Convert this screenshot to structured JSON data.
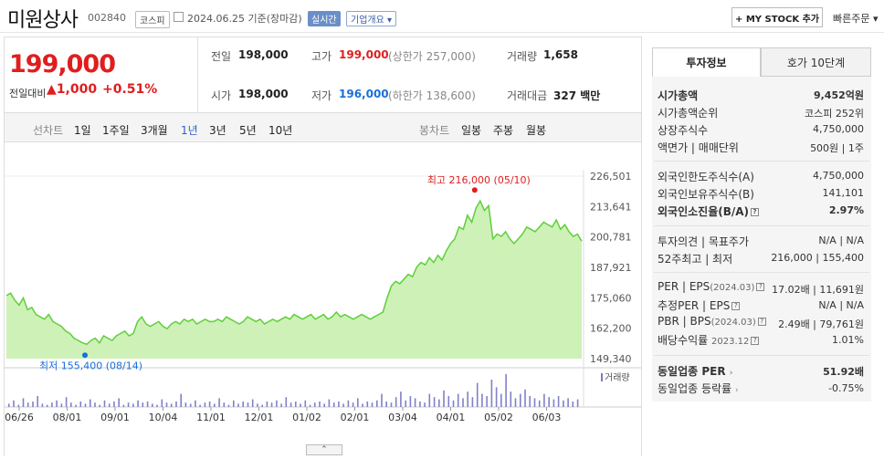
{
  "header": {
    "stock_name": "미원상사",
    "stock_code": "002840",
    "market": "코스피",
    "date": "2024.06.25",
    "basis": "기준(장마감)",
    "realtime_badge": "실시간",
    "overview_label": "기업개요",
    "mystock_label": "+ MY STOCK 추가",
    "quick_order": "빠른주문"
  },
  "quote": {
    "price": "199,000",
    "change_label": "전일대비",
    "change_amount": "1,000",
    "change_percent": "+0.51%",
    "prev_label": "전일",
    "prev": "198,000",
    "high_label": "고가",
    "high": "199,000",
    "upper_limit": "(상한가 257,000)",
    "volume_label": "거래량",
    "volume": "1,658",
    "open_label": "시가",
    "open": "198,000",
    "low_label": "저가",
    "low": "196,000",
    "lower_limit": "(하한가 138,600)",
    "amount_label": "거래대금",
    "amount": "327",
    "amount_unit": "백만"
  },
  "periods": {
    "line_label": "선차트",
    "items": [
      "1일",
      "1주일",
      "3개월",
      "1년",
      "3년",
      "5년",
      "10년"
    ],
    "active": "1년",
    "candle_label": "봉차트",
    "candle_items": [
      "일봉",
      "주봉",
      "월봉"
    ]
  },
  "chart_data": {
    "type": "area",
    "y_ticks": [
      "226,501",
      "213,641",
      "200,781",
      "187,921",
      "175,060",
      "162,200",
      "149,340"
    ],
    "ylim": [
      149340,
      226501
    ],
    "x_ticks": [
      "06/26",
      "08/01",
      "09/01",
      "10/04",
      "11/01",
      "12/01",
      "01/02",
      "02/01",
      "03/04",
      "04/01",
      "05/02",
      "06/03"
    ],
    "high_annotation": "최고 216,000 (05/10)",
    "low_annotation": "최저 155,400 (08/14)",
    "volume_label": "거래량",
    "values": [
      176000,
      177000,
      174000,
      172000,
      175000,
      170000,
      171000,
      168000,
      167000,
      166000,
      168000,
      165000,
      164000,
      163000,
      161000,
      160000,
      158000,
      157000,
      156000,
      155400,
      157000,
      158000,
      156000,
      159000,
      158000,
      157000,
      159000,
      160000,
      161000,
      159000,
      160000,
      165000,
      167000,
      164000,
      163000,
      164000,
      165000,
      163000,
      162000,
      164000,
      165000,
      164000,
      166000,
      165000,
      166000,
      164000,
      165000,
      166000,
      165000,
      165000,
      166000,
      165000,
      167000,
      166000,
      165000,
      164000,
      165000,
      167000,
      166000,
      165000,
      166000,
      164000,
      165000,
      166000,
      165000,
      166000,
      167000,
      166000,
      168000,
      167000,
      166000,
      167000,
      168000,
      166000,
      167000,
      168000,
      166000,
      167000,
      169000,
      167000,
      168000,
      167000,
      166000,
      167000,
      168000,
      167000,
      166000,
      167000,
      168000,
      169000,
      175000,
      180000,
      182000,
      181000,
      183000,
      185000,
      184000,
      188000,
      190000,
      189000,
      192000,
      190000,
      193000,
      191000,
      195000,
      198000,
      200000,
      205000,
      204000,
      210000,
      207000,
      213000,
      216000,
      212000,
      214000,
      200000,
      202000,
      201000,
      203000,
      200000,
      198000,
      200000,
      202000,
      205000,
      204000,
      203000,
      205000,
      207000,
      206000,
      205000,
      208000,
      204000,
      206000,
      203000,
      201000,
      202000,
      199000
    ]
  },
  "info": {
    "tab_investment": "투자정보",
    "tab_orderbook": "호가 10단계",
    "market_cap_label": "시가총액",
    "market_cap": "9,452억원",
    "cap_rank_label": "시가총액순위",
    "cap_rank": "코스피 252위",
    "shares_label": "상장주식수",
    "shares": "4,750,000",
    "face_label": "액면가 | 매매단위",
    "face": "500원 | 1주",
    "foreign_limit_label": "외국인한도주식수(A)",
    "foreign_limit": "4,750,000",
    "foreign_hold_label": "외국인보유주식수(B)",
    "foreign_hold": "141,101",
    "foreign_ratio_label": "외국인소진율(B/A)",
    "foreign_ratio": "2.97%",
    "opinion_label": "투자의견 | 목표주가",
    "opinion": "N/A | N/A",
    "week52_label": "52주최고 | 최저",
    "week52": "216,000 | 155,400",
    "per_label": "PER | EPS",
    "per_period": "(2024.03)",
    "per": "17.02배 | 11,691원",
    "est_per_label": "추정PER | EPS",
    "est_per": "N/A | N/A",
    "pbr_label": "PBR | BPS",
    "pbr_period": "(2024.03)",
    "pbr": "2.49배 | 79,761원",
    "div_label": "배당수익률",
    "div_period": "2023.12",
    "div": "1.01%",
    "sector_per_label": "동일업종 PER",
    "sector_per": "51.92배",
    "sector_chg_label": "동일업종 등락률",
    "sector_chg": "-0.75%"
  },
  "colors": {
    "up": "#e01e1e",
    "down": "#1a6fd8",
    "line": "#5fcf3a",
    "fill": "#c9f0b0"
  }
}
